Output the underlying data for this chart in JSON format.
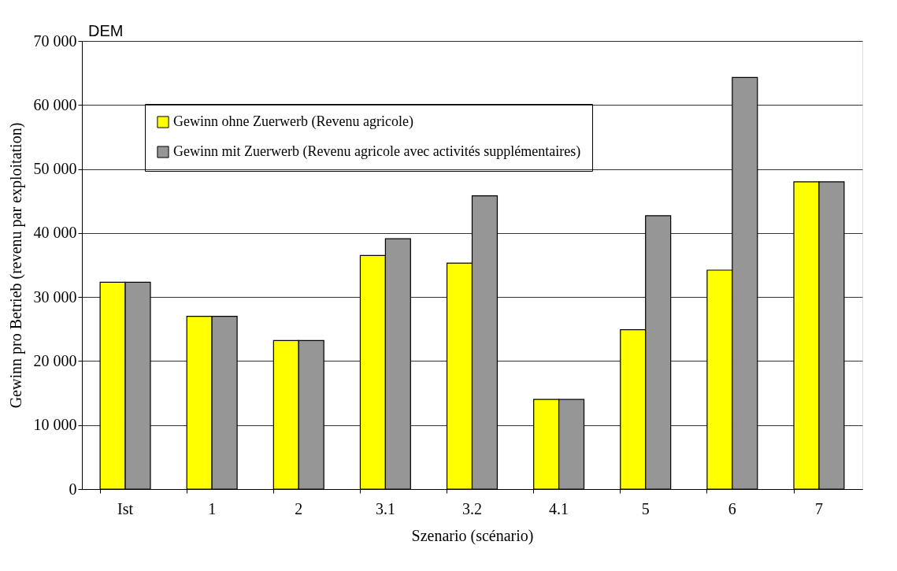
{
  "chart_data": {
    "type": "bar",
    "xlabel": "Szenario (scénario)",
    "ylabel": "Gewinn pro Betrieb (revenu par exploitation)",
    "annotations": [
      "DEM"
    ],
    "categories": [
      "Ist",
      "1",
      "2",
      "3.1",
      "3.2",
      "4.1",
      "5",
      "6",
      "7"
    ],
    "series": [
      {
        "name": "Gewinn ohne Zuerwerb (Revenu agricole)",
        "color": "#ffff00",
        "values": [
          32300,
          27000,
          23200,
          36500,
          35300,
          14000,
          24900,
          34200,
          48000
        ]
      },
      {
        "name": "Gewinn mit Zuerwerb (Revenu agricole avec activités supplémentaires)",
        "color": "#969696",
        "values": [
          32300,
          27000,
          23200,
          39100,
          45800,
          14000,
          42700,
          64300,
          48000
        ]
      }
    ],
    "ylim": [
      0,
      70000
    ],
    "yticks": [
      0,
      {
        "value": 10000,
        "label": "10 000"
      },
      {
        "value": 20000,
        "label": "20 000"
      },
      {
        "value": 30000,
        "label": "30 000"
      },
      {
        "value": 40000,
        "label": "40 000"
      },
      {
        "value": 50000,
        "label": "50 000"
      },
      {
        "value": 60000,
        "label": "60 000"
      },
      {
        "value": 70000,
        "label": "70 000"
      }
    ],
    "grid": "y",
    "legend": "top left"
  }
}
